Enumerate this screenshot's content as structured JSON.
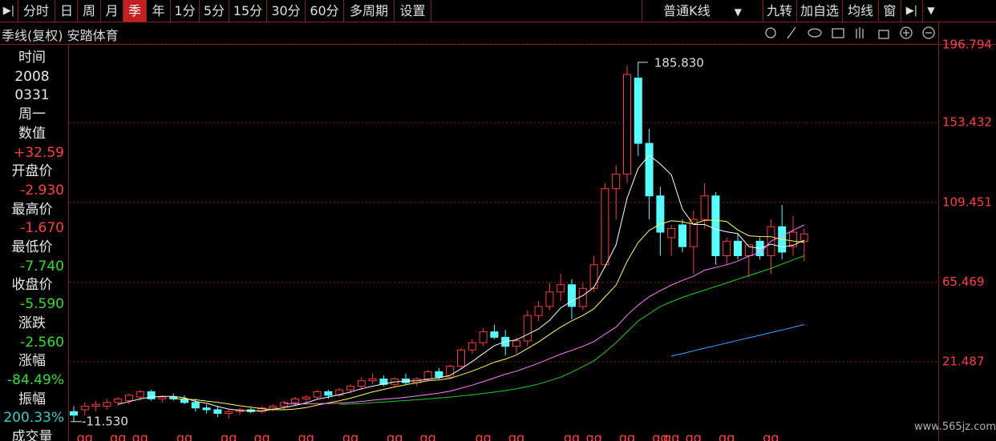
{
  "toolbar": {
    "items": [
      "分时",
      "日",
      "周",
      "月",
      "季",
      "年",
      "1分",
      "5分",
      "15分",
      "30分",
      "60分",
      "多周期",
      "设置"
    ],
    "kline_type": "普通K线",
    "right_items": [
      "九转",
      "加自选",
      "均线",
      "窗"
    ]
  },
  "header": {
    "title": "季线(复权) 安踏体育"
  },
  "info_panel": [
    "时间",
    "2008",
    "0331",
    "周一",
    "数值",
    "+32.59",
    "开盘价",
    "-2.930",
    "最高价",
    "-1.670",
    "最低价",
    "-7.740",
    "收盘价",
    "-5.590",
    "涨跌",
    "-2.560",
    "涨幅",
    "-84.49%",
    "振幅",
    "200.33%",
    "成交量"
  ],
  "watermark": "www.565jz.com",
  "chart_data": {
    "type": "candlestick",
    "categories": [
      null,
      "qq",
      null,
      null,
      "qq",
      null,
      "qq",
      null,
      null,
      null,
      "qq",
      null,
      null,
      null,
      "qq",
      null,
      null,
      "qq",
      null,
      null,
      null,
      "qq",
      null,
      null,
      null,
      "qq",
      null,
      null,
      null,
      "qq",
      null,
      null,
      "qq",
      null,
      null,
      null,
      null,
      "qq",
      null,
      null,
      "qq",
      null,
      null,
      null,
      null,
      "qq",
      null,
      "qq",
      null,
      null,
      "qq",
      null,
      null,
      "qq",
      "qq",
      null,
      "qq",
      null,
      null,
      "qq",
      null,
      null,
      null,
      "qq",
      null,
      null,
      null
    ],
    "open": [
      -6,
      -5,
      -3,
      -3,
      -1,
      0,
      2,
      5,
      1,
      2,
      1,
      -1,
      -4,
      -5,
      -7,
      -6,
      -5,
      -6,
      -4,
      -3,
      -1,
      1,
      2,
      5,
      3,
      6,
      8,
      11,
      12,
      9,
      12,
      10,
      12,
      16,
      13,
      19,
      28,
      32,
      38,
      35,
      30,
      33,
      47,
      52,
      60,
      64,
      52,
      62,
      75,
      117,
      125,
      178,
      142,
      113,
      90,
      97,
      85,
      100,
      113,
      80,
      88,
      80,
      88,
      80,
      96,
      85,
      88
    ],
    "high": [
      -3,
      -1,
      0,
      1,
      2,
      4,
      6,
      6,
      3,
      4,
      3,
      1,
      -2,
      -3,
      -5,
      -4,
      -4,
      -3,
      -2,
      0,
      2,
      3,
      6,
      6,
      7,
      9,
      13,
      15,
      14,
      13,
      15,
      13,
      17,
      18,
      20,
      29,
      34,
      40,
      42,
      39,
      35,
      50,
      55,
      65,
      70,
      67,
      65,
      80,
      120,
      130,
      185,
      185.83,
      150,
      118,
      97,
      100,
      105,
      120,
      115,
      90,
      92,
      86,
      90,
      100,
      108,
      102,
      95
    ],
    "low": [
      -11.53,
      -8,
      -6,
      -5,
      -3,
      -2,
      0,
      0,
      -1,
      0,
      -2,
      -6,
      -7,
      -9,
      -10,
      -8,
      -7,
      -7,
      -6,
      -5,
      -3,
      -1,
      1,
      1,
      2,
      4,
      6,
      9,
      8,
      8,
      9,
      8,
      11,
      12,
      12,
      18,
      26,
      30,
      34,
      25,
      26,
      30,
      44,
      50,
      55,
      45,
      50,
      60,
      73,
      100,
      120,
      135,
      100,
      80,
      80,
      82,
      70,
      95,
      75,
      75,
      78,
      68,
      78,
      70,
      78,
      80,
      77
    ],
    "close": [
      -8,
      -3,
      -2,
      -1,
      1,
      3,
      5,
      1,
      2,
      1,
      -1,
      -4,
      -5,
      -7,
      -6,
      -5,
      -6,
      -4,
      -3,
      -1,
      1,
      2,
      5,
      3,
      6,
      8,
      11,
      12,
      9,
      12,
      10,
      12,
      16,
      13,
      19,
      28,
      32,
      38,
      35,
      30,
      33,
      47,
      52,
      60,
      64,
      52,
      62,
      75,
      117,
      125,
      180,
      142,
      113,
      93,
      95,
      85,
      100,
      113,
      80,
      88,
      80,
      86,
      80,
      96,
      82,
      93,
      92
    ],
    "up_color": "#ff3c3c",
    "down_color": "#54ffff",
    "series": [
      {
        "color": "#ffffff",
        "values": [
          null,
          null,
          null,
          null,
          -2,
          -0.5,
          1,
          2,
          2.4,
          2.4,
          1.6,
          -0.4,
          -1.4,
          -3.2,
          -4.6,
          -5.4,
          -5.6,
          -5.6,
          -4.8,
          -3.8,
          -2.6,
          -1.2,
          0.8,
          2,
          3.4,
          4.8,
          6.6,
          8,
          9.2,
          10.4,
          10.8,
          11,
          11.8,
          12.6,
          14,
          17.6,
          21.6,
          26,
          30.4,
          32.6,
          33.6,
          36.6,
          39.6,
          44.4,
          51.2,
          55,
          58,
          62.6,
          74,
          86,
          111.8,
          128.2,
          135.4,
          130.6,
          124.6,
          105.6,
          97.2,
          97.2,
          94.6,
          93.2,
          92.2,
          85,
          84,
          86.4,
          84.8,
          85.8,
          88.6
        ]
      },
      {
        "color": "#ffff55",
        "values": [
          null,
          null,
          null,
          null,
          null,
          null,
          null,
          null,
          null,
          1,
          1,
          0.5,
          -0.2,
          -0.9,
          -1.8,
          -2.8,
          -3.6,
          -4.4,
          -4.9,
          -5,
          -4.6,
          -3.8,
          -2.4,
          -1.2,
          0,
          1.4,
          3.1,
          4.9,
          6.2,
          7.6,
          8.8,
          9.9,
          11,
          11.5,
          12.3,
          14.3,
          16.3,
          18.7,
          21.2,
          23,
          25.2,
          28.8,
          32.4,
          36.6,
          40.6,
          44.1,
          47,
          50.7,
          57.3,
          63.7,
          76.9,
          87.3,
          94,
          97.4,
          99.3,
          98.7,
          97.4,
          99.5,
          99.6,
          98.9,
          94.2,
          91,
          90.6,
          90.5,
          89,
          88.1,
          87.4
        ]
      },
      {
        "color": "#ff80ff",
        "values": [
          null,
          null,
          null,
          null,
          null,
          null,
          null,
          null,
          null,
          null,
          null,
          null,
          null,
          null,
          null,
          null,
          null,
          null,
          null,
          -1.5,
          -1.7,
          -1.8,
          -1.6,
          -1.5,
          -1.3,
          -1,
          -0.4,
          0.3,
          0.8,
          1.3,
          1.9,
          2.6,
          3.4,
          4.2,
          5.3,
          6.9,
          8.6,
          10.5,
          12.6,
          14.6,
          16.3,
          18.5,
          20.7,
          23.2,
          25.7,
          27.8,
          30,
          32.6,
          36.7,
          40.6,
          47.2,
          52.8,
          57.4,
          60.7,
          63.8,
          66.4,
          68.7,
          72,
          73.5,
          75,
          77,
          79.8,
          81.5,
          88,
          91,
          94,
          97
        ]
      },
      {
        "color": "#22cc22",
        "values": [
          null,
          null,
          null,
          null,
          null,
          null,
          null,
          null,
          null,
          null,
          null,
          null,
          null,
          null,
          null,
          null,
          null,
          null,
          null,
          null,
          null,
          null,
          null,
          null,
          -2,
          -1.8,
          -1.5,
          -1.1,
          -0.7,
          -0.3,
          0.1,
          0.5,
          1,
          1.5,
          2,
          2.6,
          3.3,
          4,
          4.8,
          5.6,
          6.6,
          7.8,
          9.2,
          11,
          13,
          15.8,
          18.8,
          22,
          26.8,
          32,
          38,
          44,
          48,
          52,
          54.6,
          57,
          59,
          61,
          63,
          65,
          67,
          69,
          71,
          73,
          75.4,
          77.7,
          80
        ]
      },
      {
        "color": "#33aaff",
        "values": [
          null,
          null,
          null,
          null,
          null,
          null,
          null,
          null,
          null,
          null,
          null,
          null,
          null,
          null,
          null,
          null,
          null,
          null,
          null,
          null,
          null,
          null,
          null,
          null,
          null,
          null,
          null,
          null,
          null,
          null,
          null,
          null,
          null,
          null,
          null,
          null,
          null,
          null,
          null,
          null,
          null,
          null,
          null,
          null,
          null,
          null,
          null,
          null,
          null,
          null,
          null,
          null,
          null,
          null,
          24.6,
          26,
          27.5,
          29,
          30.4,
          31.8,
          33.3,
          34.7,
          36.1,
          37.6,
          39,
          40.5,
          42
        ]
      }
    ],
    "high_label": "185.830",
    "low_label": "-11.530",
    "ylim": [
      -22.23,
      196.794
    ],
    "yticks": [
      21.487,
      65.469,
      109.451,
      153.432,
      196.794
    ],
    "grid": true
  }
}
